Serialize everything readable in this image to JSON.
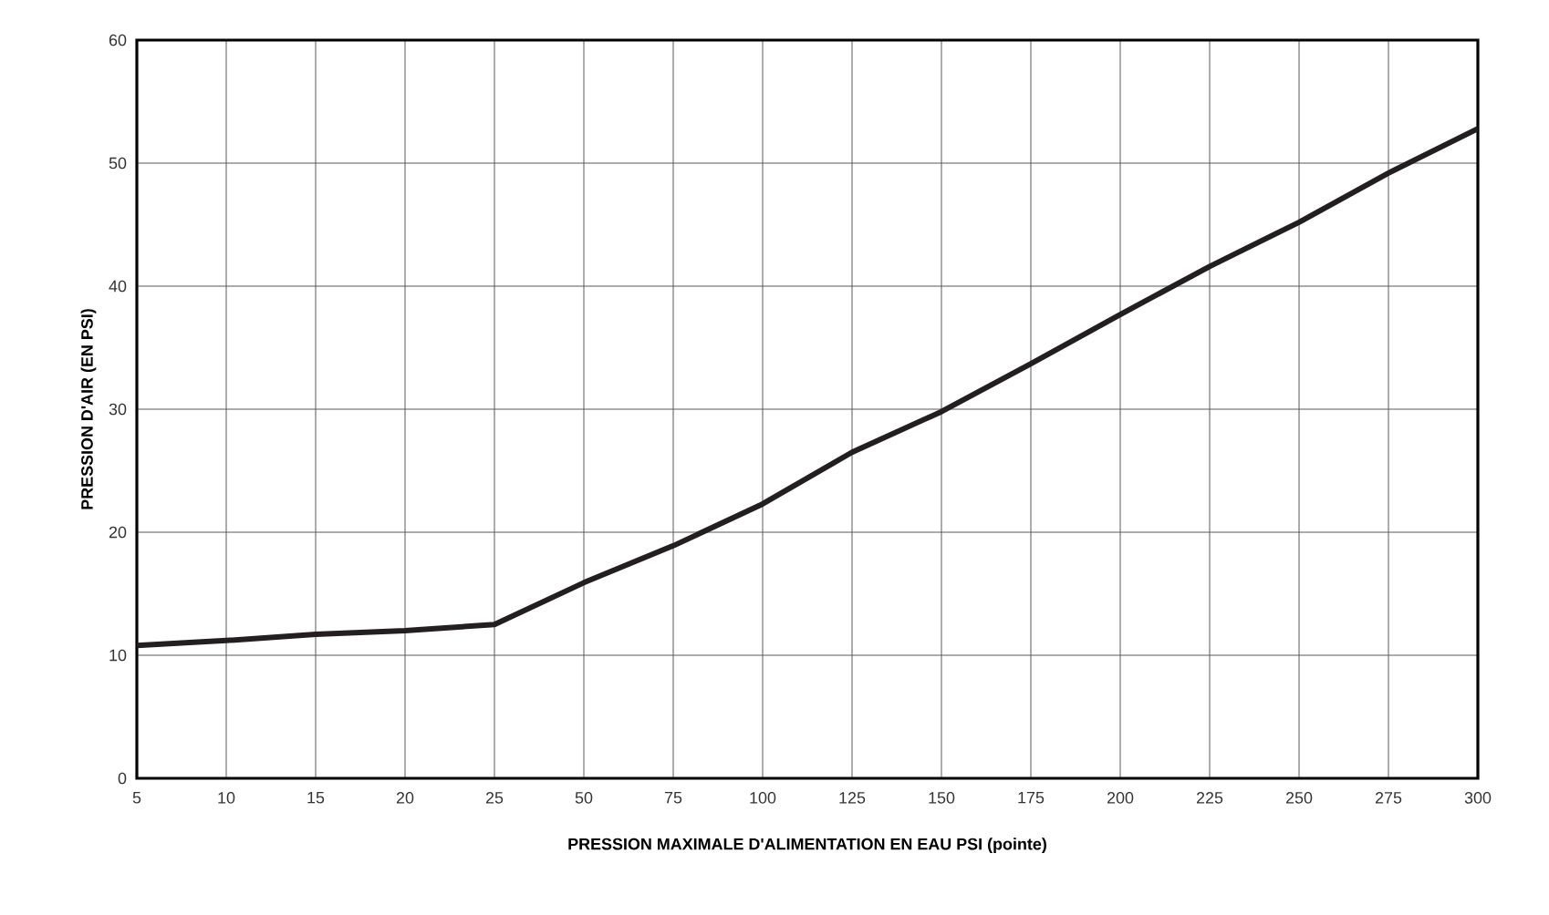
{
  "chart_data": {
    "type": "line",
    "xlabel": "PRESSION MAXIMALE D'ALIMENTATION EN EAU PSI (pointe)",
    "ylabel": "PRESSION D'AIR (EN PSI)",
    "categories": [
      "5",
      "10",
      "15",
      "20",
      "25",
      "50",
      "75",
      "100",
      "125",
      "150",
      "175",
      "200",
      "225",
      "250",
      "275",
      "300"
    ],
    "series": [
      {
        "color": "#231f20",
        "values": [
          10.8,
          11.2,
          11.7,
          12.0,
          12.5,
          15.9,
          18.9,
          22.3,
          26.5,
          29.8,
          33.7,
          37.7,
          41.6,
          45.2,
          49.2,
          52.8
        ]
      }
    ],
    "ylim": [
      0,
      60
    ],
    "yticks": [
      0,
      10,
      20,
      30,
      40,
      50,
      60
    ],
    "grid": true,
    "marker": "none",
    "line_style": "solid"
  }
}
